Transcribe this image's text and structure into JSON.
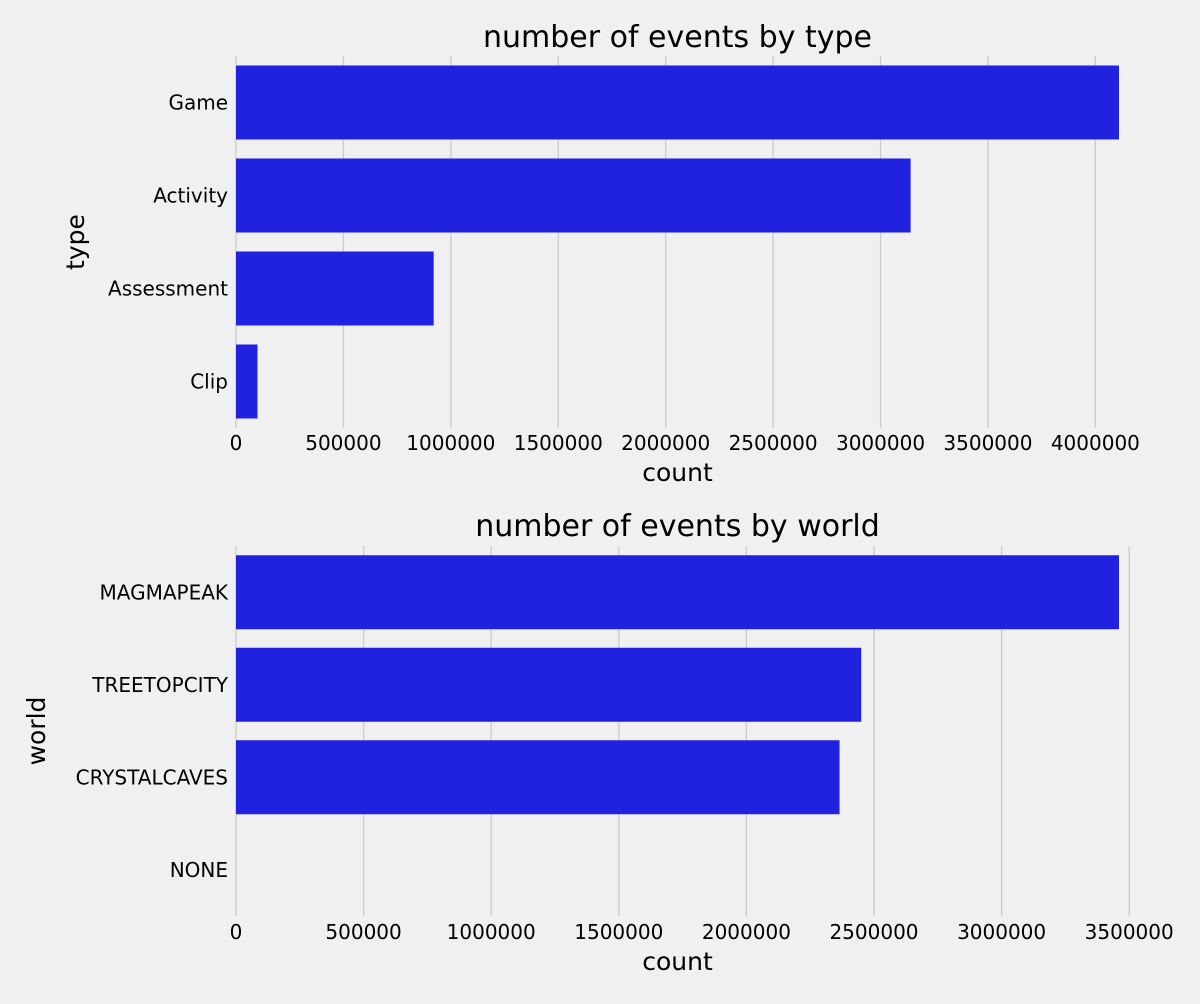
{
  "chart_data": [
    {
      "type": "bar",
      "orientation": "horizontal",
      "title": "number of events by type",
      "xlabel": "count",
      "ylabel": "type",
      "categories": [
        "Game",
        "Activity",
        "Assessment",
        "Clip"
      ],
      "values": [
        4110000,
        3140000,
        920000,
        100000
      ],
      "xticks": [
        0,
        500000,
        1000000,
        1500000,
        2000000,
        2500000,
        3000000,
        3500000,
        4000000
      ],
      "xlim": [
        0,
        4110000
      ],
      "grid": "vertical",
      "bar_color": "#2121e0"
    },
    {
      "type": "bar",
      "orientation": "horizontal",
      "title": "number of events by world",
      "xlabel": "count",
      "ylabel": "world",
      "categories": [
        "MAGMAPEAK",
        "TREETOPCITY",
        "CRYSTALCAVES",
        "NONE"
      ],
      "values": [
        3460000,
        2450000,
        2365000,
        0
      ],
      "xticks": [
        0,
        500000,
        1000000,
        1500000,
        2000000,
        2500000,
        3000000,
        3500000
      ],
      "xlim": [
        0,
        3460000
      ],
      "grid": "vertical",
      "bar_color": "#2121e0"
    }
  ]
}
